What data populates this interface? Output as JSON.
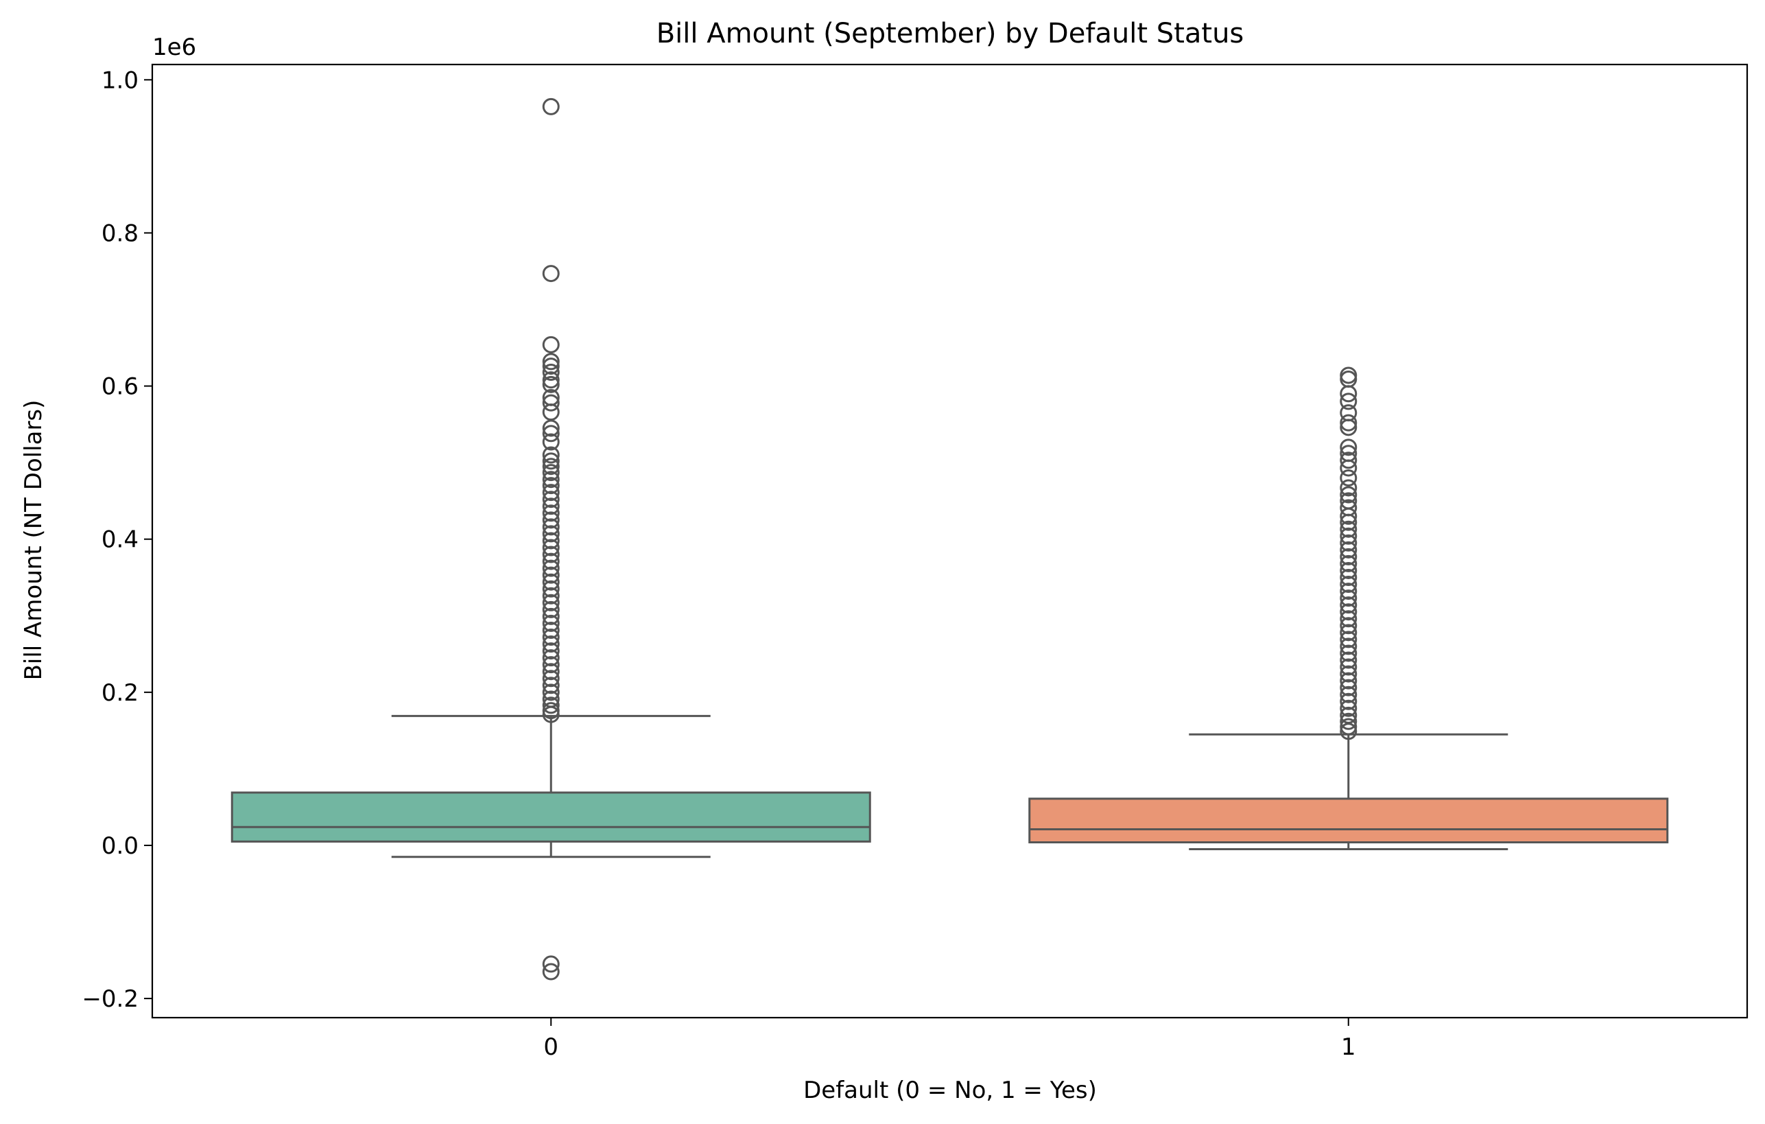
{
  "chart_data": {
    "type": "box",
    "title": "Bill Amount (September) by Default Status",
    "xlabel": "Default (0 = No, 1 = Yes)",
    "ylabel": "Bill Amount (NT Dollars)",
    "y_offset_label": "1e6",
    "y_scale": 1000000,
    "ylim": [
      -0.225,
      1.02
    ],
    "y_ticks": [
      -0.2,
      0.0,
      0.2,
      0.4,
      0.6,
      0.8,
      1.0
    ],
    "y_tick_labels": [
      "−0.2",
      "0.0",
      "0.2",
      "0.4",
      "0.6",
      "0.8",
      "1.0"
    ],
    "categories": [
      "0",
      "1"
    ],
    "grid": false,
    "boxes": [
      {
        "category": "0",
        "color": "#72b6a1",
        "whisker_low": -0.015,
        "q1": 0.005,
        "median": 0.024,
        "q3": 0.069,
        "whisker_high": 0.169,
        "outliers": [
          0.965,
          0.747,
          0.654,
          0.632,
          0.626,
          0.618,
          0.608,
          0.602,
          0.585,
          0.578,
          0.566,
          0.545,
          0.538,
          0.527,
          0.51,
          0.502,
          0.495,
          0.487,
          0.478,
          0.47,
          0.461,
          0.452,
          0.443,
          0.434,
          0.425,
          0.416,
          0.407,
          0.398,
          0.389,
          0.38,
          0.371,
          0.362,
          0.353,
          0.344,
          0.335,
          0.326,
          0.317,
          0.308,
          0.299,
          0.29,
          0.281,
          0.272,
          0.263,
          0.254,
          0.245,
          0.236,
          0.227,
          0.218,
          0.209,
          0.2,
          0.191,
          0.183,
          0.176,
          0.171,
          -0.155,
          -0.165
        ]
      },
      {
        "category": "1",
        "color": "#e99675",
        "whisker_low": -0.005,
        "q1": 0.004,
        "median": 0.021,
        "q3": 0.061,
        "whisker_high": 0.145,
        "outliers": [
          0.614,
          0.609,
          0.59,
          0.58,
          0.565,
          0.552,
          0.546,
          0.52,
          0.512,
          0.503,
          0.493,
          0.48,
          0.467,
          0.458,
          0.45,
          0.441,
          0.43,
          0.422,
          0.413,
          0.404,
          0.395,
          0.386,
          0.377,
          0.368,
          0.359,
          0.35,
          0.341,
          0.332,
          0.323,
          0.314,
          0.305,
          0.296,
          0.287,
          0.278,
          0.269,
          0.26,
          0.251,
          0.242,
          0.233,
          0.224,
          0.215,
          0.206,
          0.197,
          0.188,
          0.179,
          0.17,
          0.162,
          0.155,
          0.149
        ]
      }
    ]
  }
}
